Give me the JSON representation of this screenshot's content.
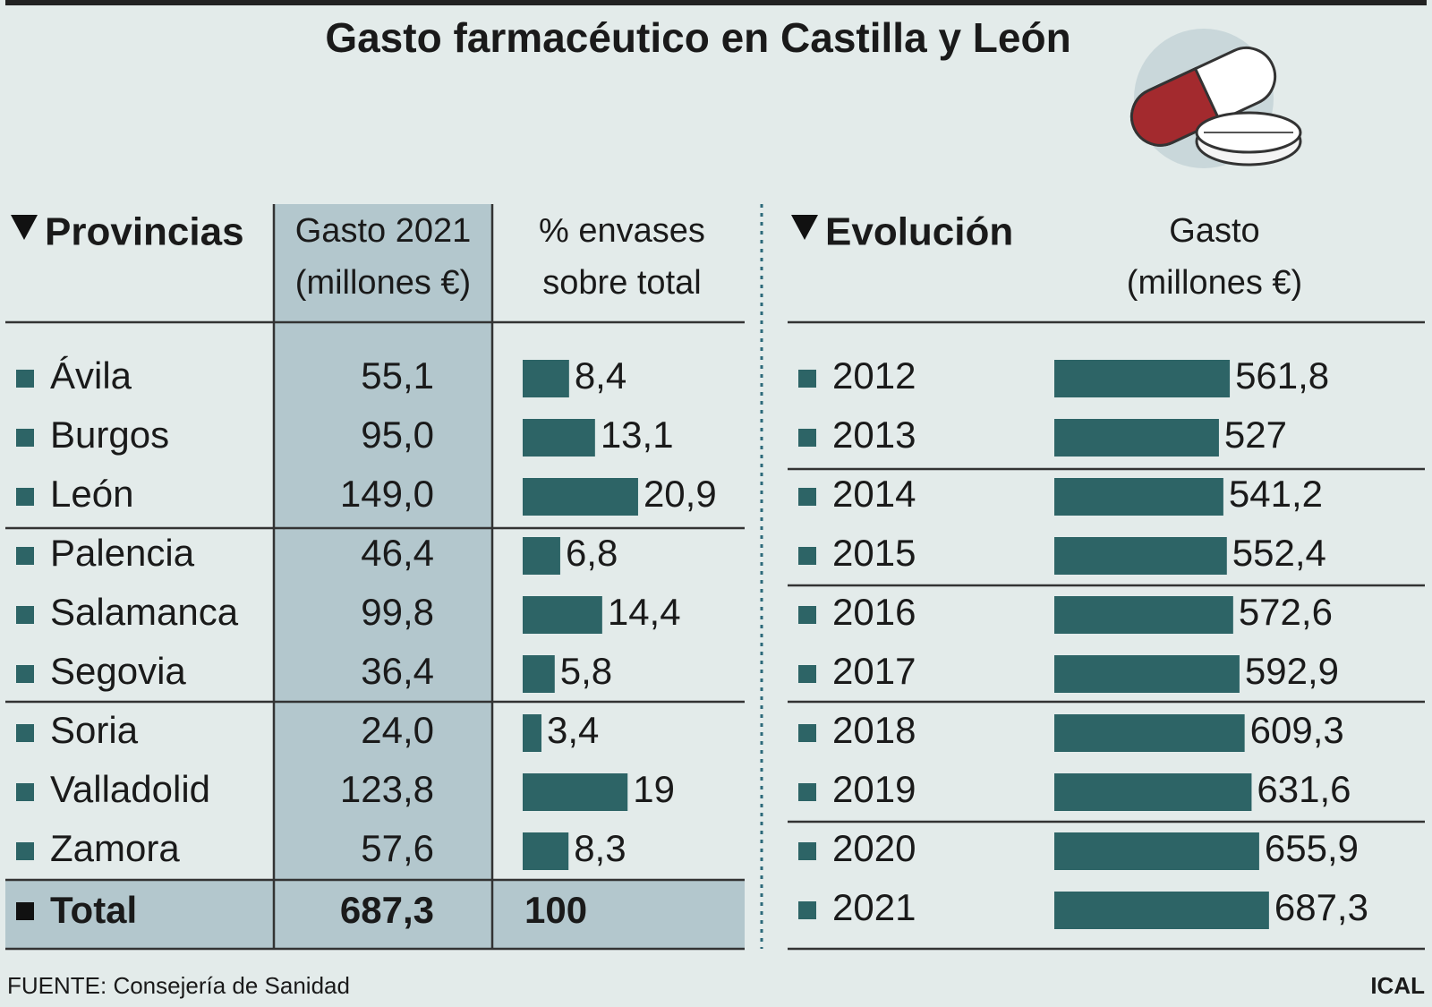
{
  "title": "Gasto farmacéutico en Castilla y León",
  "provinces": {
    "heading": "Provincias",
    "columns": [
      [
        "Gasto 2021",
        "(millones €)"
      ],
      [
        "% envases",
        "sobre total"
      ]
    ],
    "names": [
      "Ávila",
      "Burgos",
      "León",
      "Palencia",
      "Salamanca",
      "Segovia",
      "Soria",
      "Valladolid",
      "Zamora"
    ],
    "gasto": [
      "55,1",
      "95,0",
      "149,0",
      "46,4",
      "99,8",
      "36,4",
      "24,0",
      "123,8",
      "57,6"
    ],
    "pct": {
      "values": [
        8.4,
        13.1,
        20.9,
        6.8,
        14.4,
        5.8,
        3.4,
        19,
        8.3
      ],
      "value_labels": [
        "8,4",
        "13,1",
        "20,9",
        "6,8",
        "14,4",
        "5,8",
        "3,4",
        "19",
        "8,3"
      ],
      "color": "#2d6466"
    },
    "total": {
      "label": "Total",
      "gasto": "687,3",
      "pct": "100"
    }
  },
  "evolution": {
    "heading": "Evolución",
    "column": [
      "Gasto",
      "(millones €)"
    ],
    "categories": [
      "2012",
      "2013",
      "2014",
      "2015",
      "2016",
      "2017",
      "2018",
      "2019",
      "2020",
      "2021"
    ],
    "values": [
      561.8,
      527,
      541.2,
      552.4,
      572.6,
      592.9,
      609.3,
      631.6,
      655.9,
      687.3
    ],
    "value_labels": [
      "561,8",
      "527",
      "541,2",
      "552,4",
      "572,6",
      "592,9",
      "609,3",
      "631,6",
      "655,9",
      "687,3"
    ],
    "color": "#2d6466"
  },
  "source": "FUENTE: Consejería de Sanidad",
  "credit": "ICAL"
}
